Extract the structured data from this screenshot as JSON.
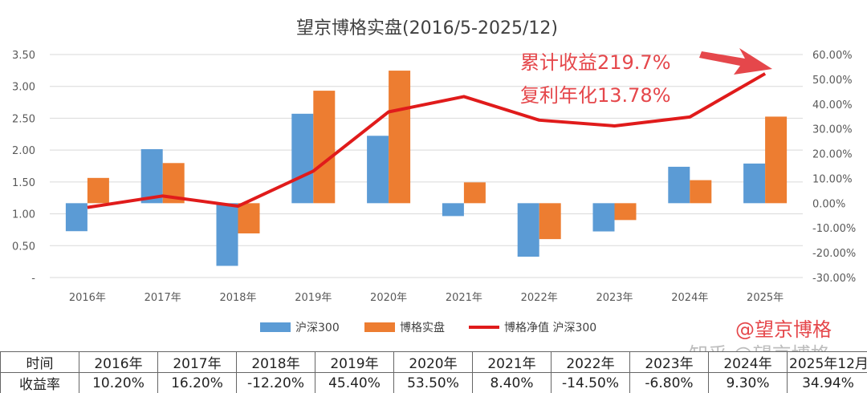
{
  "chart_data": {
    "type": "bar+line",
    "title": "望京博格实盘(2016/5-2025/12)",
    "categories": [
      "2016年",
      "2017年",
      "2018年",
      "2019年",
      "2020年",
      "2021年",
      "2022年",
      "2023年",
      "2024年",
      "2025年"
    ],
    "series": [
      {
        "name": "沪深300",
        "type": "bar",
        "axis": "right",
        "color": "#5b9bd5",
        "values": [
          -11.3,
          21.8,
          -25.3,
          36.1,
          27.2,
          -5.2,
          -21.6,
          -11.4,
          14.7,
          16.0
        ]
      },
      {
        "name": "博格实盘",
        "type": "bar",
        "axis": "right",
        "color": "#ed7d31",
        "values": [
          10.2,
          16.2,
          -12.2,
          45.4,
          53.5,
          8.4,
          -14.5,
          -6.8,
          9.3,
          34.94
        ]
      },
      {
        "name": "博格净值 沪深300",
        "type": "line",
        "axis": "left",
        "color": "#e01b1b",
        "values": [
          1.1,
          1.28,
          1.12,
          1.67,
          2.6,
          2.84,
          2.47,
          2.38,
          2.52,
          3.2
        ]
      }
    ],
    "left_axis": {
      "min": 0,
      "max": 3.5,
      "ticks": [
        "-",
        "0.50",
        "1.00",
        "1.50",
        "2.00",
        "2.50",
        "3.00",
        "3.50"
      ]
    },
    "right_axis": {
      "min": -30,
      "max": 60,
      "ticks": [
        "-30.00%",
        "-20.00%",
        "-10.00%",
        "0.00%",
        "10.00%",
        "20.00%",
        "30.00%",
        "40.00%",
        "50.00%",
        "60.00%"
      ]
    },
    "legend_position": "bottom",
    "annotations": [
      "累计收益219.7%",
      "复利年化13.78%"
    ],
    "accent_color": "#e5474b",
    "arrow_icon": "red-arrow-icon"
  },
  "watermark": "@望京博格",
  "faint_watermark": "知乎 @望京博格",
  "table": {
    "header": [
      "时间",
      "2016年",
      "2017年",
      "2018年",
      "2019年",
      "2020年",
      "2021年",
      "2022年",
      "2023年",
      "2024年",
      "2025年12月"
    ],
    "row": [
      "收益率",
      "10.20%",
      "16.20%",
      "-12.20%",
      "45.40%",
      "53.50%",
      "8.40%",
      "-14.50%",
      "-6.80%",
      "9.30%",
      "34.94%"
    ]
  }
}
